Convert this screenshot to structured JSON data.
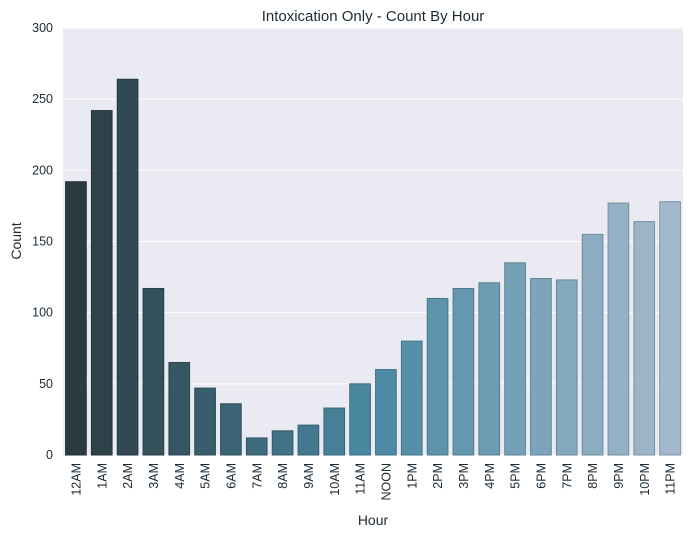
{
  "chart_data": {
    "type": "bar",
    "title": "Intoxication Only - Count By Hour",
    "xlabel": "Hour",
    "ylabel": "Count",
    "ylim": [
      0,
      300
    ],
    "yticks": [
      0,
      50,
      100,
      150,
      200,
      250,
      300
    ],
    "categories": [
      "12AM",
      "1AM",
      "2AM",
      "3AM",
      "4AM",
      "5AM",
      "6AM",
      "7AM",
      "8AM",
      "9AM",
      "10AM",
      "11AM",
      "NOON",
      "1PM",
      "2PM",
      "3PM",
      "4PM",
      "5PM",
      "6PM",
      "7PM",
      "8PM",
      "9PM",
      "10PM",
      "11PM"
    ],
    "values": [
      192,
      242,
      264,
      117,
      65,
      47,
      36,
      12,
      17,
      21,
      33,
      50,
      60,
      80,
      110,
      117,
      121,
      135,
      124,
      123,
      155,
      177,
      164,
      178
    ],
    "grid": true,
    "colors": {
      "background": "#eaeaf2",
      "grid": "#ffffff",
      "palette_start": "#2b3b41",
      "palette_mid": "#4a8aa3",
      "palette_end": "#a3b8cc"
    }
  }
}
